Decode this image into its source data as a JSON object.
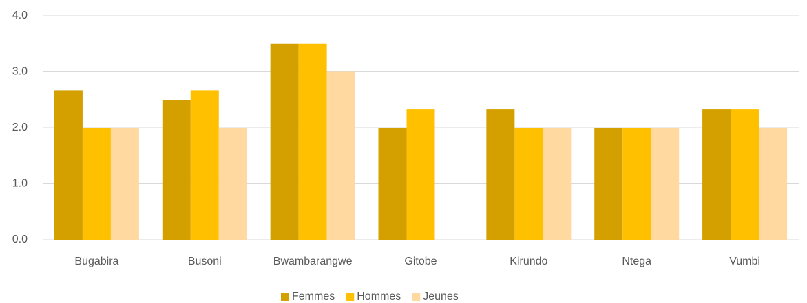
{
  "chart_data": {
    "type": "bar",
    "categories": [
      "Bugabira",
      "Busoni",
      "Bwambarangwe",
      "Gitobe",
      "Kirundo",
      "Ntega",
      "Vumbi"
    ],
    "series": [
      {
        "name": "Femmes",
        "color": "#d4a000",
        "values": [
          2.67,
          2.5,
          3.5,
          2.0,
          2.33,
          2.0,
          2.33
        ]
      },
      {
        "name": "Hommes",
        "color": "#ffc000",
        "values": [
          2.0,
          2.67,
          3.5,
          2.33,
          2.0,
          2.0,
          2.33
        ]
      },
      {
        "name": "Jeunes",
        "color": "#ffd9a0",
        "values": [
          2.0,
          2.0,
          3.0,
          null,
          2.0,
          2.0,
          2.0
        ]
      }
    ],
    "ylim": [
      0,
      4
    ],
    "yticks": [
      {
        "value": 0,
        "label": "0.0"
      },
      {
        "value": 1,
        "label": "1.0"
      },
      {
        "value": 2,
        "label": "2.0"
      },
      {
        "value": 3,
        "label": "3.0"
      },
      {
        "value": 4,
        "label": "4.0"
      }
    ],
    "grid": true,
    "legend": "bottom"
  }
}
